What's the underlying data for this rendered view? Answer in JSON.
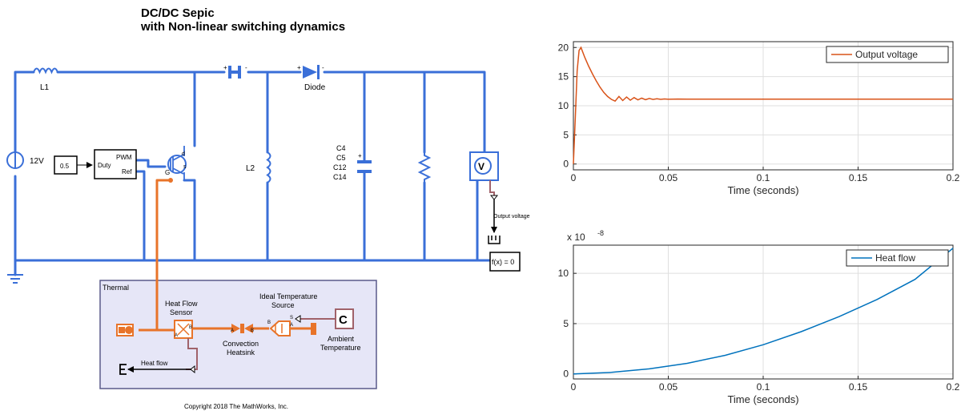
{
  "model": {
    "title_line1": "DC/DC Sepic",
    "title_line2": "with Non-linear switching dynamics",
    "copyright": "Copyright 2018 The MathWorks, Inc."
  },
  "labels": {
    "source": "12V",
    "l1": "L1",
    "l2": "L2",
    "diode": "Diode",
    "caps": [
      "C4",
      "C5",
      "C12",
      "C14"
    ],
    "duty_value": "0.5",
    "duty_port": "Duty",
    "pwm_port": "PWM",
    "ref_port": "Ref",
    "mosfet_g": "G",
    "mosfet_d": "d",
    "mosfet_s": "s",
    "cap_plus": "+",
    "cap_minus": "-",
    "output_signal": "Output voltage",
    "solver": "f(x) = 0",
    "voltmeter_glyph": "V"
  },
  "thermal": {
    "title": "Thermal",
    "heat_flow_sensor_1": "Heat Flow",
    "heat_flow_sensor_2": "Sensor",
    "ideal_temp_1": "Ideal Temperature",
    "ideal_temp_2": "Source",
    "convection_1": "Convection",
    "convection_2": "Heatsink",
    "ambient_1": "Ambient",
    "ambient_2": "Temperature",
    "ambient_glyph": "C",
    "heat_flow_signal": "Heat flow",
    "port_a": "A",
    "port_b": "B",
    "port_s": "S"
  },
  "colors": {
    "electrical": "#3a6fd8",
    "thermal": "#e8742a",
    "signal": "#000000",
    "thermal_panel": "#e6e6f7",
    "series_voltage": "#d95319",
    "series_heat": "#0072bd"
  },
  "chart_data": [
    {
      "type": "line",
      "xlabel": "Time (seconds)",
      "xlim": [
        0,
        0.2
      ],
      "ylim": [
        -1,
        21
      ],
      "xticks": [
        0,
        0.05,
        0.1,
        0.15,
        0.2
      ],
      "xtick_labels": [
        "0",
        "0.05",
        "0.1",
        "0.15",
        "0.2"
      ],
      "yticks": [
        0,
        5,
        10,
        15,
        20
      ],
      "ytick_labels": [
        "0",
        "5",
        "10",
        "15",
        "20"
      ],
      "grid": true,
      "legend": "top-right",
      "series": [
        {
          "name": "Output voltage",
          "x": [
            0,
            0.001,
            0.002,
            0.003,
            0.004,
            0.006,
            0.008,
            0.01,
            0.012,
            0.014,
            0.016,
            0.018,
            0.02,
            0.022,
            0.024,
            0.026,
            0.028,
            0.03,
            0.032,
            0.034,
            0.036,
            0.038,
            0.04,
            0.042,
            0.044,
            0.046,
            0.048,
            0.05,
            0.055,
            0.06,
            0.07,
            0.08,
            0.1,
            0.12,
            0.15,
            0.2
          ],
          "y": [
            0,
            8,
            16,
            19.5,
            20,
            18.3,
            16.8,
            15.5,
            14.3,
            13.2,
            12.3,
            11.6,
            11.1,
            10.8,
            11.6,
            10.9,
            11.5,
            10.95,
            11.4,
            11.0,
            11.3,
            11.05,
            11.25,
            11.08,
            11.2,
            11.1,
            11.17,
            11.12,
            11.15,
            11.13,
            11.14,
            11.13,
            11.13,
            11.13,
            11.13,
            11.13
          ]
        }
      ]
    },
    {
      "type": "line",
      "xlabel": "Time (seconds)",
      "xlim": [
        0,
        0.2
      ],
      "ylim": [
        -0.5,
        12.8
      ],
      "xticks": [
        0,
        0.05,
        0.1,
        0.15,
        0.2
      ],
      "xtick_labels": [
        "0",
        "0.05",
        "0.1",
        "0.15",
        "0.2"
      ],
      "yticks": [
        0,
        5,
        10
      ],
      "ytick_labels": [
        "0",
        "5",
        "10"
      ],
      "scale_base": "x 10",
      "scale_exponent": "-8",
      "grid": true,
      "legend": "top-right",
      "series": [
        {
          "name": "Heat flow",
          "x": [
            0,
            0.02,
            0.04,
            0.06,
            0.08,
            0.1,
            0.12,
            0.14,
            0.16,
            0.18,
            0.2
          ],
          "y": [
            0,
            0.15,
            0.5,
            1.05,
            1.85,
            2.9,
            4.2,
            5.7,
            7.4,
            9.4,
            12.5
          ]
        }
      ]
    }
  ]
}
